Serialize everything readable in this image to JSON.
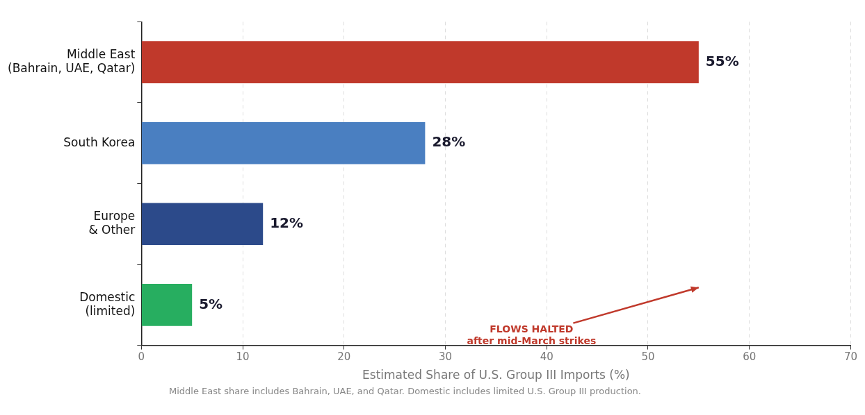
{
  "chart_data": {
    "type": "bar",
    "orientation": "horizontal",
    "categories": [
      "Middle East\n(Bahrain, UAE, Qatar)",
      "South Korea",
      "Europe\n& Other",
      "Domestic\n(limited)"
    ],
    "values": [
      55,
      28,
      12,
      5
    ],
    "colors": [
      "#c0392b",
      "#4a7fc1",
      "#2c4a8a",
      "#27ae60"
    ],
    "value_labels": [
      "55%",
      "28%",
      "12%",
      "5%"
    ],
    "xlabel": "Estimated Share of U.S. Group III Imports (%)",
    "xlim": [
      0,
      70
    ],
    "xticks": [
      0,
      10,
      20,
      30,
      40,
      50,
      60,
      70
    ],
    "grid": "x",
    "legend": false,
    "annotations": [
      "FLOWS HALTED\nafter mid-March strikes",
      "Middle East share includes Bahrain, UAE, and Qatar. Domestic includes limited U.S. Group III production."
    ]
  }
}
